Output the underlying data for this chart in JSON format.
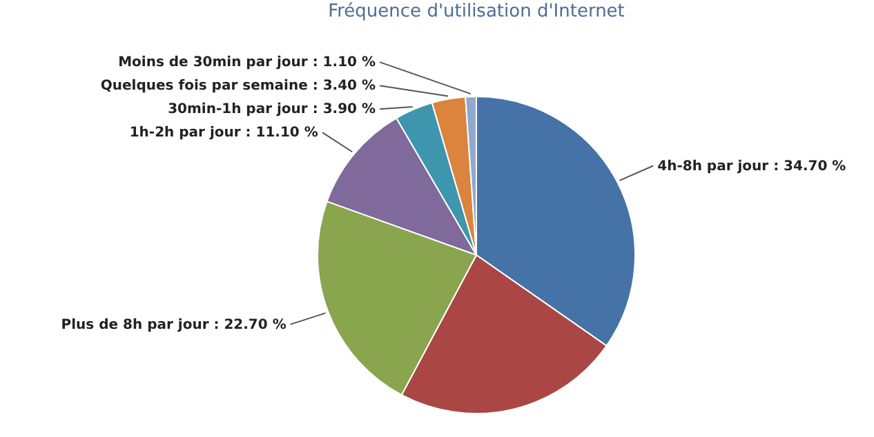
{
  "chart_data": {
    "type": "pie",
    "title": "Fréquence d'utilisation d'Internet",
    "categories": [
      "4h-8h par jour",
      null,
      "Plus de 8h par jour",
      "1h-2h par jour",
      "30min-1h par jour",
      "Quelques fois par semaine",
      "Moins de 30min par jour"
    ],
    "values": [
      34.7,
      23.1,
      22.7,
      11.1,
      3.9,
      3.4,
      1.1
    ],
    "value_labels": [
      "34.70 %",
      null,
      "22.70 %",
      "11.10 %",
      "3.90 %",
      "3.40 %",
      "1.10 %"
    ],
    "colors": [
      "#4572a7",
      "#aa4643",
      "#89a54e",
      "#80699b",
      "#3d96ae",
      "#db843d",
      "#92a8cd"
    ]
  }
}
